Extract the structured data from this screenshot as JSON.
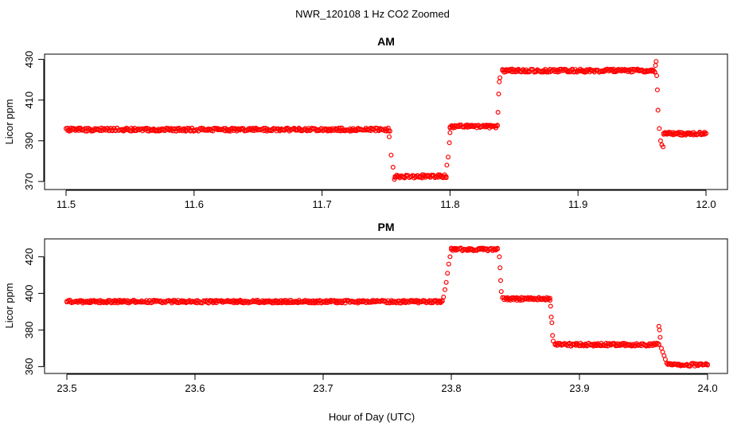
{
  "figure": {
    "title": "NWR_120108  1 Hz CO2 Zoomed",
    "xlabel": "Hour of Day (UTC)"
  },
  "chart_data": [
    {
      "type": "scatter",
      "title": "AM",
      "xlabel": "Hour of Day (UTC)",
      "ylabel": "Licor ppm",
      "xlim": [
        11.5,
        12.0
      ],
      "ylim": [
        368,
        431
      ],
      "xticks": [
        "11.5",
        "11.6",
        "11.7",
        "11.8",
        "11.9",
        "12.0"
      ],
      "yticks": [
        "370",
        "390",
        "410",
        "430"
      ],
      "grid": false,
      "marker_color": "#ff0000",
      "segments": [
        {
          "x": [
            11.5,
            11.753
          ],
          "y": 395.5
        },
        {
          "x": [
            11.757,
            11.797
          ],
          "y": 372.5
        },
        {
          "x": [
            11.8,
            11.837
          ],
          "y": 397.0
        },
        {
          "x": [
            11.841,
            11.96
          ],
          "y": 424.5
        },
        {
          "x": [
            11.967,
            12.0
          ],
          "y": 393.5
        }
      ],
      "transitions": [
        {
          "x": [
            11.7525,
            11.754,
            11.7555,
            11.7565
          ],
          "y": [
            392,
            383,
            377,
            371
          ]
        },
        {
          "x": [
            11.7975,
            11.7985,
            11.7995,
            11.8
          ],
          "y": [
            378,
            382,
            389,
            394
          ]
        },
        {
          "x": [
            11.8375,
            11.838,
            11.8385,
            11.839
          ],
          "y": [
            404,
            413,
            419,
            421
          ]
        },
        {
          "x": [
            11.9605,
            11.961,
            11.9615,
            11.962,
            11.9625,
            11.9635,
            11.9645,
            11.9655,
            11.9665
          ],
          "y": [
            427,
            429,
            422,
            415,
            405,
            396,
            390,
            388,
            387
          ]
        }
      ]
    },
    {
      "type": "scatter",
      "title": "PM",
      "xlabel": "Hour of Day (UTC)",
      "ylabel": "Licor ppm",
      "xlim": [
        23.5,
        24.0
      ],
      "ylim": [
        358,
        428
      ],
      "xticks": [
        "23.5",
        "23.6",
        "23.7",
        "23.8",
        "23.9",
        "24.0"
      ],
      "yticks": [
        "360",
        "380",
        "400",
        "420"
      ],
      "grid": false,
      "marker_color": "#ff0000",
      "segments": [
        {
          "x": [
            23.5,
            23.793
          ],
          "y": 395.5
        },
        {
          "x": [
            23.8,
            23.836
          ],
          "y": 424.0
        },
        {
          "x": [
            23.84,
            23.877
          ],
          "y": 397.0
        },
        {
          "x": [
            23.881,
            23.962
          ],
          "y": 372.0
        },
        {
          "x": [
            23.969,
            24.0
          ],
          "y": 361.0
        }
      ],
      "transitions": [
        {
          "x": [
            23.794,
            23.795,
            23.796,
            23.797,
            23.798,
            23.799
          ],
          "y": [
            398,
            402,
            406,
            411,
            416,
            420
          ]
        },
        {
          "x": [
            23.8375,
            23.838,
            23.8385,
            23.839
          ],
          "y": [
            420,
            414,
            407,
            401
          ]
        },
        {
          "x": [
            23.8775,
            23.878,
            23.8785,
            23.879,
            23.8795
          ],
          "y": [
            393,
            387,
            384,
            377,
            374
          ]
        },
        {
          "x": [
            23.962,
            23.9625,
            23.963,
            23.964,
            23.965,
            23.966,
            23.967,
            23.968
          ],
          "y": [
            382,
            380,
            376,
            370,
            368,
            366,
            364,
            362
          ]
        }
      ]
    }
  ]
}
